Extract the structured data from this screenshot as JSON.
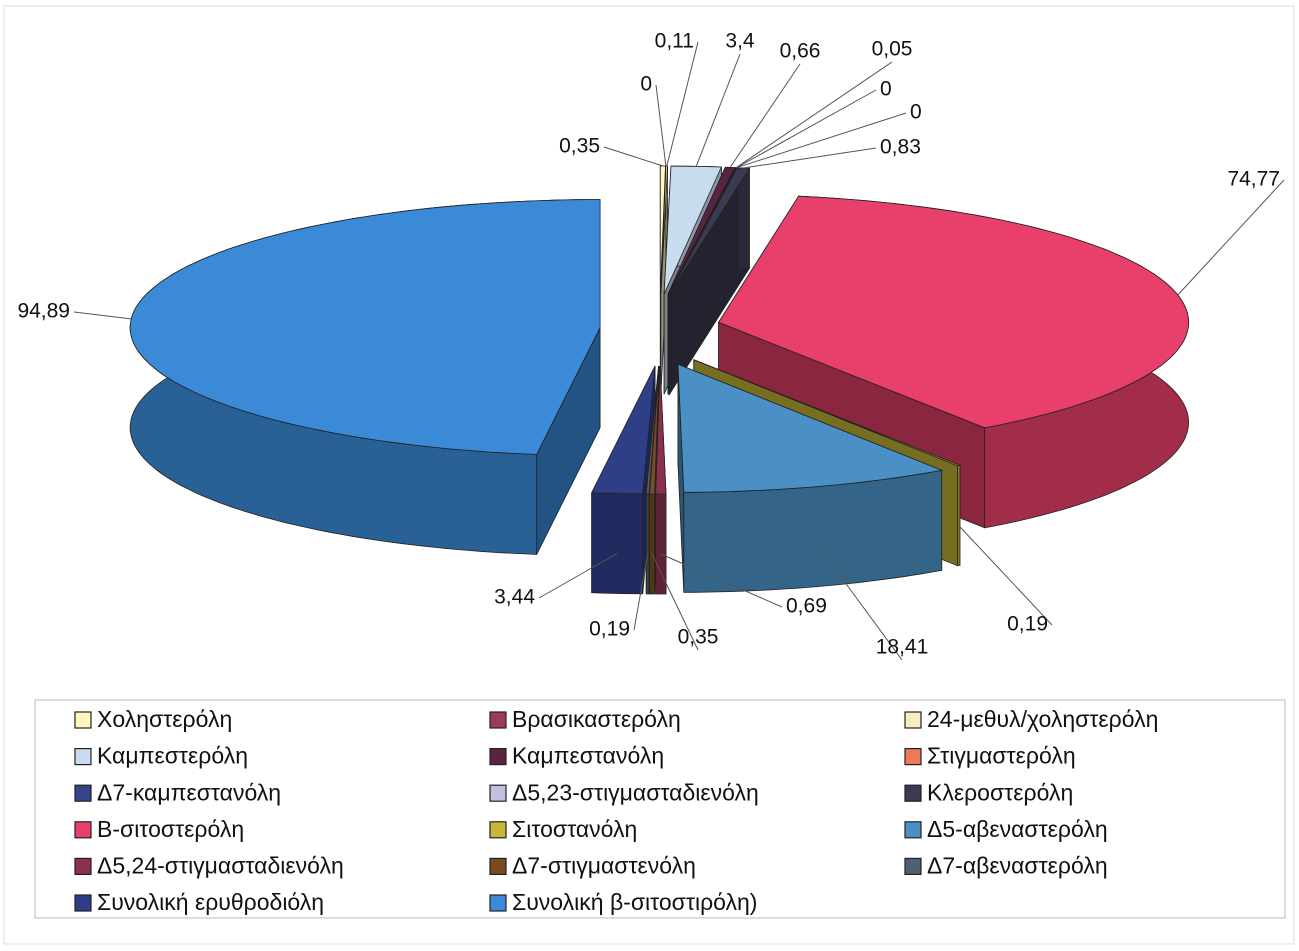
{
  "chart_data": {
    "type": "pie",
    "three_d": true,
    "exploded": true,
    "categories": [
      "Χοληστερόλη",
      "Βρασικαστερόλη",
      "24-μεθυλ/χοληστερόλη",
      "Καμπεστερόλη",
      "Καμπεστανόλη",
      "Στιγμαστερόλη",
      "Δ7-καμπεστανόλη",
      "Δ5,23-στιγμασταδιενόλη",
      "Κλεροστερόλη",
      "Β-σιτοστερόλη",
      "Σιτοστανόλη",
      "Δ5-αβεναστερόλη",
      "Δ5,24-στιγμασταδιενόλη",
      "Δ7-στιγμαστενόλη",
      "Δ7-αβεναστερόλη",
      "Συνολική ερυθροδιόλη",
      "Συνολική β-σιτοστιρόλη)"
    ],
    "values": [
      0.35,
      0,
      0.11,
      3.4,
      0.66,
      0.05,
      0,
      0,
      0.83,
      74.77,
      0.19,
      18.41,
      0.69,
      0.35,
      0.19,
      3.44,
      94.89
    ],
    "value_labels": [
      "0,35",
      "0",
      "0,11",
      "3,4",
      "0,66",
      "0,05",
      "0",
      "0",
      "0,83",
      "74,77",
      "0,19",
      "18,41",
      "0,69",
      "0,35",
      "0,19",
      "3,44",
      "94,89"
    ],
    "colors": [
      "#fff6c0",
      "#9b3b5a",
      "#f4eec0",
      "#c8dcf0",
      "#5a2440",
      "#f07858",
      "#33448a",
      "#c0c0e0",
      "#3a3a50",
      "#e8406a",
      "#c8b838",
      "#4a90c4",
      "#8a3050",
      "#7a4a20",
      "#506070",
      "#2e3f88",
      "#3a8ad8"
    ],
    "legend": "bottom"
  }
}
